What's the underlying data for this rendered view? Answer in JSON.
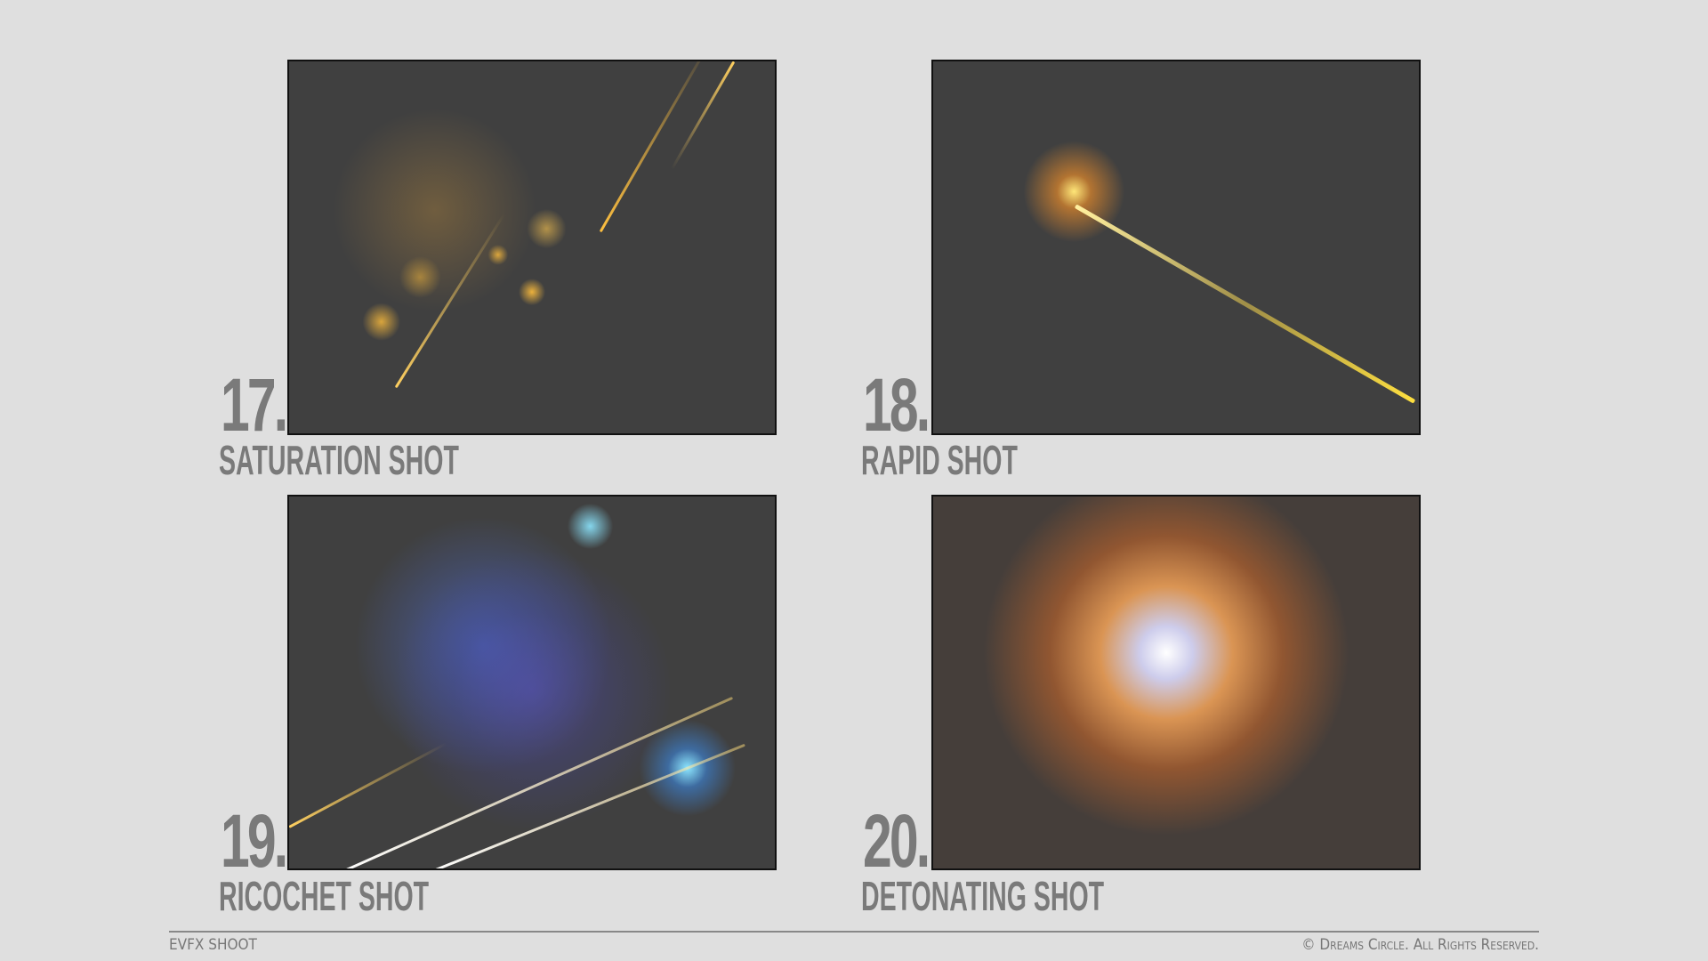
{
  "shots": [
    {
      "number": "17.",
      "title": "SATURATION SHOT"
    },
    {
      "number": "18.",
      "title": "RAPID SHOT"
    },
    {
      "number": "19.",
      "title": "RICOCHET SHOT"
    },
    {
      "number": "20.",
      "title": "DETONATING SHOT"
    }
  ],
  "footer": {
    "left": "EVFX SHOOT",
    "right": "© Dreams Circle. All Rights Reserved."
  },
  "colors": {
    "background": "#dfdfdf",
    "panel": "#404040",
    "label": "#7a7a7a"
  }
}
